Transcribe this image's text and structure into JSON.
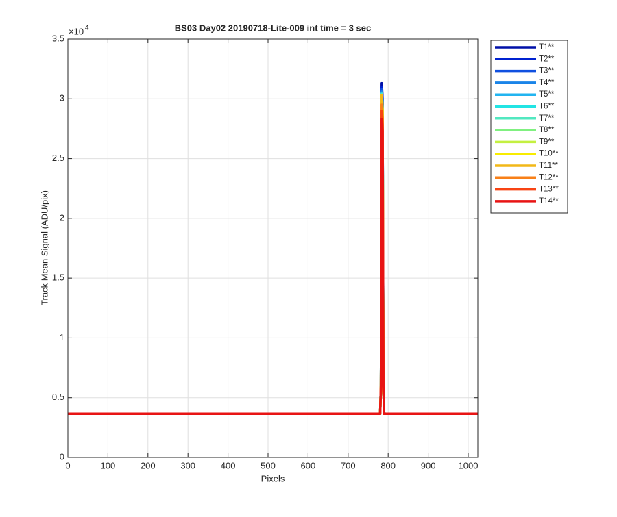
{
  "chart_data": {
    "type": "line",
    "title": "BS03 Day02 20190718-Lite-009 int time = 3 sec",
    "x_label": "Pixels",
    "y_label": "Track Mean Signal (ADU/pix)",
    "y_multiplier": "×10",
    "y_multiplier_power": "4",
    "x": [
      0,
      780,
      782,
      784,
      786,
      788,
      790,
      1024
    ],
    "series": [
      {
        "name": "T1**",
        "color": "#0010a8",
        "values": [
          3650,
          3650,
          6000,
          31300,
          30000,
          6000,
          3650,
          3650
        ]
      },
      {
        "name": "T2**",
        "color": "#0022d0",
        "values": [
          3650,
          3650,
          6000,
          31000,
          29800,
          6000,
          3650,
          3650
        ]
      },
      {
        "name": "T3**",
        "color": "#1050e0",
        "values": [
          3650,
          3650,
          6000,
          30800,
          29600,
          6000,
          3650,
          3650
        ]
      },
      {
        "name": "T4**",
        "color": "#1a84e8",
        "values": [
          3650,
          3650,
          6000,
          30600,
          29400,
          6000,
          3650,
          3650
        ]
      },
      {
        "name": "T5**",
        "color": "#22b4f0",
        "values": [
          3650,
          3650,
          6000,
          30500,
          29300,
          6000,
          3650,
          3650
        ]
      },
      {
        "name": "T6**",
        "color": "#22e4e4",
        "values": [
          3650,
          3650,
          6000,
          30400,
          29200,
          6000,
          3650,
          3650
        ]
      },
      {
        "name": "T7**",
        "color": "#52e8c0",
        "values": [
          3650,
          3650,
          6000,
          30400,
          29200,
          6000,
          3650,
          3650
        ]
      },
      {
        "name": "T8**",
        "color": "#80f080",
        "values": [
          3650,
          3650,
          6000,
          30300,
          29100,
          6000,
          3650,
          3650
        ]
      },
      {
        "name": "T9**",
        "color": "#c4f040",
        "values": [
          3650,
          3650,
          6000,
          30300,
          29100,
          6000,
          3650,
          3650
        ]
      },
      {
        "name": "T10**",
        "color": "#f8ec00",
        "values": [
          3650,
          3650,
          6000,
          30300,
          29100,
          6000,
          3650,
          3650
        ]
      },
      {
        "name": "T11**",
        "color": "#f2b818",
        "values": [
          3650,
          3650,
          6000,
          30300,
          29000,
          6000,
          3650,
          3650
        ]
      },
      {
        "name": "T12**",
        "color": "#f88018",
        "values": [
          3650,
          3650,
          6000,
          29500,
          28400,
          6000,
          3650,
          3650
        ]
      },
      {
        "name": "T13**",
        "color": "#f84414",
        "values": [
          3650,
          3650,
          6000,
          29000,
          27900,
          6000,
          3650,
          3650
        ]
      },
      {
        "name": "T14**",
        "color": "#e81414",
        "values": [
          3650,
          3650,
          6000,
          28300,
          27300,
          6000,
          3650,
          3650
        ]
      }
    ],
    "xlim": [
      0,
      1024
    ],
    "ylim": [
      0,
      35000
    ],
    "xticks": [
      0,
      100,
      200,
      300,
      400,
      500,
      600,
      700,
      800,
      900,
      1000
    ],
    "yticks": [
      0,
      {
        "value": 5000,
        "label": "0.5"
      },
      {
        "value": 10000,
        "label": "1"
      },
      {
        "value": 15000,
        "label": "1.5"
      },
      {
        "value": 20000,
        "label": "2"
      },
      {
        "value": 25000,
        "label": "2.5"
      },
      {
        "value": 30000,
        "label": "3"
      },
      {
        "value": 35000,
        "label": "3.5"
      }
    ],
    "grid": true,
    "legend_location": "northeastoutside"
  }
}
